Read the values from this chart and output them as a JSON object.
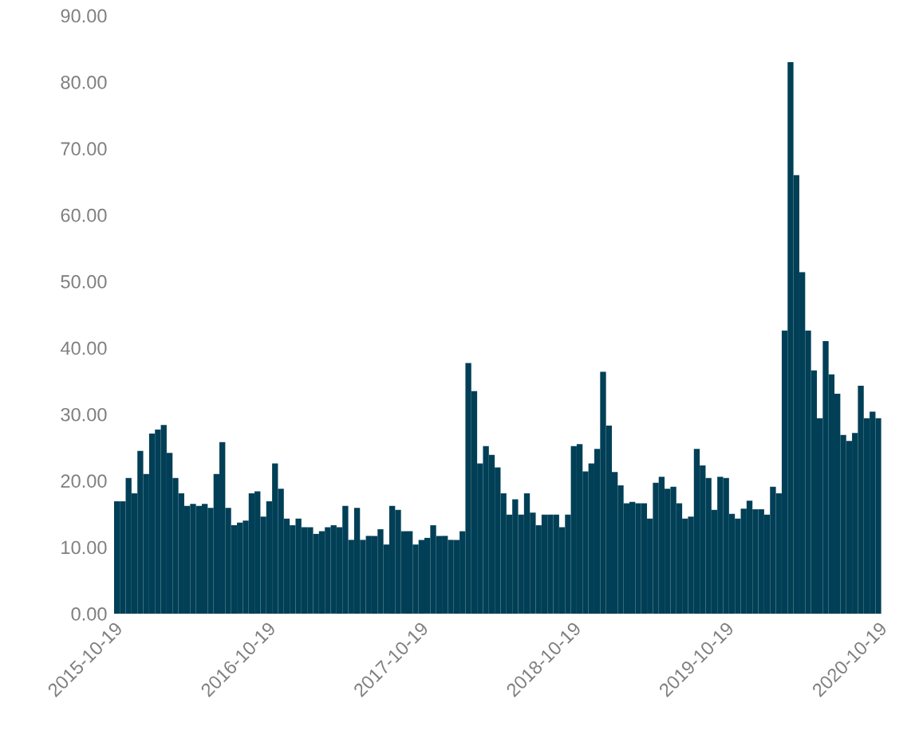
{
  "chart_data": {
    "type": "bar",
    "color": "#003f56",
    "x": [
      "2015-10-19",
      "2015-11-02",
      "2015-11-16",
      "2015-11-30",
      "2015-12-14",
      "2015-12-28",
      "2016-01-11",
      "2016-01-25",
      "2016-02-08",
      "2016-02-22",
      "2016-03-07",
      "2016-03-21",
      "2016-04-04",
      "2016-04-18",
      "2016-05-02",
      "2016-05-16",
      "2016-05-30",
      "2016-06-13",
      "2016-06-27",
      "2016-07-11",
      "2016-07-25",
      "2016-08-08",
      "2016-08-22",
      "2016-09-05",
      "2016-09-19",
      "2016-10-03",
      "2016-10-17",
      "2016-10-31",
      "2016-11-14",
      "2016-11-28",
      "2016-12-12",
      "2016-12-26",
      "2017-01-09",
      "2017-01-23",
      "2017-02-06",
      "2017-02-20",
      "2017-03-06",
      "2017-03-20",
      "2017-04-03",
      "2017-04-17",
      "2017-05-01",
      "2017-05-15",
      "2017-05-29",
      "2017-06-12",
      "2017-06-26",
      "2017-07-10",
      "2017-07-24",
      "2017-08-07",
      "2017-08-21",
      "2017-09-04",
      "2017-09-18",
      "2017-10-02",
      "2017-10-16",
      "2017-10-30",
      "2017-11-13",
      "2017-11-27",
      "2017-12-11",
      "2017-12-25",
      "2018-01-08",
      "2018-01-22",
      "2018-02-05",
      "2018-02-19",
      "2018-03-05",
      "2018-03-19",
      "2018-04-02",
      "2018-04-16",
      "2018-04-30",
      "2018-05-14",
      "2018-05-28",
      "2018-06-11",
      "2018-06-25",
      "2018-07-09",
      "2018-07-23",
      "2018-08-06",
      "2018-08-20",
      "2018-09-03",
      "2018-09-17",
      "2018-10-01",
      "2018-10-15",
      "2018-10-29",
      "2018-11-12",
      "2018-11-26",
      "2018-12-10",
      "2018-12-24",
      "2019-01-07",
      "2019-01-21",
      "2019-02-04",
      "2019-02-18",
      "2019-03-04",
      "2019-03-18",
      "2019-04-01",
      "2019-04-15",
      "2019-04-29",
      "2019-05-13",
      "2019-05-27",
      "2019-06-10",
      "2019-06-24",
      "2019-07-08",
      "2019-07-22",
      "2019-08-05",
      "2019-08-19",
      "2019-09-02",
      "2019-09-16",
      "2019-09-30",
      "2019-10-14",
      "2019-10-28",
      "2019-11-11",
      "2019-11-25",
      "2019-12-09",
      "2019-12-23",
      "2020-01-06",
      "2020-01-20",
      "2020-02-03",
      "2020-02-17",
      "2020-03-02",
      "2020-03-16",
      "2020-03-30",
      "2020-04-13",
      "2020-04-27",
      "2020-05-11",
      "2020-05-25",
      "2020-06-08",
      "2020-06-22",
      "2020-07-06",
      "2020-07-20",
      "2020-08-03",
      "2020-08-17",
      "2020-08-31",
      "2020-09-14",
      "2020-09-28",
      "2020-10-12"
    ],
    "values": [
      16.9,
      16.9,
      20.4,
      18.1,
      24.5,
      21.0,
      27.1,
      27.7,
      28.4,
      24.2,
      20.4,
      18.1,
      16.2,
      16.5,
      16.2,
      16.5,
      15.9,
      21.0,
      25.8,
      15.9,
      13.3,
      13.7,
      14.0,
      18.1,
      18.4,
      14.6,
      16.9,
      22.6,
      18.8,
      14.3,
      13.3,
      14.3,
      13.0,
      13.0,
      12.0,
      12.4,
      13.0,
      13.3,
      13.0,
      16.2,
      11.1,
      15.9,
      11.1,
      11.7,
      11.7,
      12.7,
      10.4,
      16.2,
      15.6,
      12.4,
      12.4,
      10.4,
      11.1,
      11.4,
      13.3,
      11.7,
      11.7,
      11.1,
      11.1,
      12.4,
      37.7,
      33.5,
      22.6,
      25.2,
      23.9,
      22.0,
      18.1,
      14.9,
      17.2,
      14.9,
      18.1,
      15.2,
      13.3,
      14.9,
      14.9,
      14.9,
      13.0,
      14.9,
      25.2,
      25.5,
      21.4,
      22.6,
      24.8,
      36.4,
      28.3,
      21.3,
      19.3,
      16.6,
      16.8,
      16.6,
      16.6,
      14.3,
      19.7,
      20.6,
      18.8,
      19.1,
      16.6,
      14.3,
      14.6,
      24.8,
      22.3,
      20.4,
      15.6,
      20.6,
      20.4,
      15.0,
      14.3,
      15.8,
      17.0,
      15.7,
      15.7,
      14.9,
      19.1,
      18.1,
      42.6,
      83.0,
      66.0,
      51.4,
      42.6,
      36.6,
      29.4,
      41.0,
      36.0,
      33.1,
      26.9,
      26.0,
      27.2,
      34.3,
      29.4,
      30.4,
      29.4
    ],
    "xlim": [
      "2015-10-19",
      "2020-10-26"
    ],
    "xticks": [
      "2015-10-19",
      "2016-10-19",
      "2017-10-19",
      "2018-10-19",
      "2019-10-19",
      "2020-10-19"
    ],
    "ylim": [
      0,
      90
    ],
    "yticks": [
      {
        "value": 0,
        "label": "0.00"
      },
      {
        "value": 10,
        "label": "10.00"
      },
      {
        "value": 20,
        "label": "20.00"
      },
      {
        "value": 30,
        "label": "30.00"
      },
      {
        "value": 40,
        "label": "40.00"
      },
      {
        "value": 50,
        "label": "50.00"
      },
      {
        "value": 60,
        "label": "60.00"
      },
      {
        "value": 70,
        "label": "70.00"
      },
      {
        "value": 80,
        "label": "80.00"
      },
      {
        "value": 90,
        "label": "90.00"
      }
    ],
    "grid": false,
    "legend": false
  }
}
